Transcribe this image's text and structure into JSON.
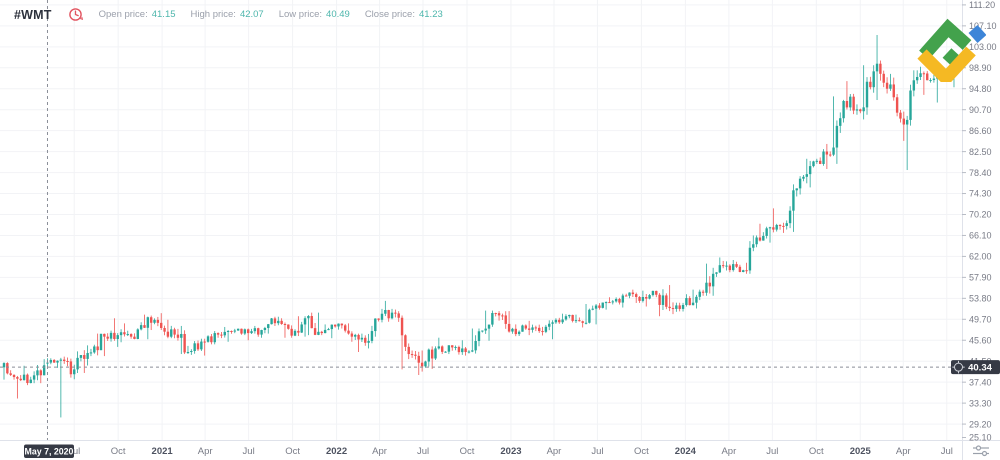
{
  "header": {
    "symbol": "#WMT",
    "fields": [
      {
        "label": "Open price:",
        "value": "41.15"
      },
      {
        "label": "High price:",
        "value": "42.07"
      },
      {
        "label": "Low price:",
        "value": "40.49"
      },
      {
        "label": "Close price:",
        "value": "41.23"
      }
    ]
  },
  "crosshair": {
    "date_label": "May 7, 2020",
    "date": "2020-05-04",
    "price_label": "40.34",
    "price": 40.34,
    "candle": {
      "o": 41.15,
      "h": 42.07,
      "l": 40.49,
      "c": 41.23
    }
  },
  "price_axis": {
    "ticks": [
      "111.20",
      "107.10",
      "103.00",
      "98.90",
      "94.80",
      "90.70",
      "86.60",
      "82.50",
      "78.40",
      "74.30",
      "70.20",
      "66.10",
      "62.00",
      "57.90",
      "53.80",
      "49.70",
      "45.60",
      "41.50",
      "37.40",
      "33.30",
      "29.20",
      "25.10"
    ]
  },
  "time_axis": {
    "ticks": [
      {
        "label": "Jul",
        "date": "2020-07-01",
        "major": false
      },
      {
        "label": "Oct",
        "date": "2020-10-01",
        "major": false
      },
      {
        "label": "2021",
        "date": "2021-01-01",
        "major": true
      },
      {
        "label": "Apr",
        "date": "2021-04-01",
        "major": false
      },
      {
        "label": "Jul",
        "date": "2021-07-01",
        "major": false
      },
      {
        "label": "Oct",
        "date": "2021-10-01",
        "major": false
      },
      {
        "label": "2022",
        "date": "2022-01-01",
        "major": true
      },
      {
        "label": "Apr",
        "date": "2022-04-01",
        "major": false
      },
      {
        "label": "Jul",
        "date": "2022-07-01",
        "major": false
      },
      {
        "label": "Oct",
        "date": "2022-10-01",
        "major": false
      },
      {
        "label": "2023",
        "date": "2023-01-01",
        "major": true
      },
      {
        "label": "Apr",
        "date": "2023-04-01",
        "major": false
      },
      {
        "label": "Jul",
        "date": "2023-07-01",
        "major": false
      },
      {
        "label": "Oct",
        "date": "2023-10-01",
        "major": false
      },
      {
        "label": "2024",
        "date": "2024-01-01",
        "major": true
      },
      {
        "label": "Apr",
        "date": "2024-04-01",
        "major": false
      },
      {
        "label": "Jul",
        "date": "2024-07-01",
        "major": false
      },
      {
        "label": "Oct",
        "date": "2024-10-01",
        "major": false
      },
      {
        "label": "2025",
        "date": "2025-01-01",
        "major": true
      },
      {
        "label": "Apr",
        "date": "2025-04-01",
        "major": false
      },
      {
        "label": "Jul",
        "date": "2025-07-01",
        "major": false
      }
    ]
  },
  "colors": {
    "up": "#26a69a",
    "down": "#ef5350",
    "grid": "#f2f3f6",
    "axis_line": "#dfe2ea",
    "tick_mark": "#b8bcc5",
    "axis_text": "#787b86",
    "axis_text_major": "#4d5260",
    "crosshair": "#8a8e98",
    "badge_bg": "#363a45",
    "badge_text": "#ffffff",
    "clock_icon": "#e25561",
    "logo_green": "#43a24c",
    "logo_yellow": "#f5b923",
    "logo_blue": "#3d85d8"
  },
  "chart_data": {
    "type": "candlestick",
    "symbol": "#WMT",
    "x_range": [
      "2020-02-03",
      "2025-07-14"
    ],
    "y_range": [
      25.1,
      111.2
    ],
    "price_step": 4.1,
    "grid": true,
    "monthly_ohlc": [
      [
        "2020-02",
        40.3,
        41.3,
        37.9,
        38.4
      ],
      [
        "2020-03",
        38.4,
        40.6,
        34.2,
        37.9
      ],
      [
        "2020-04",
        37.9,
        41.9,
        37.2,
        40.7
      ],
      [
        "2020-05",
        40.7,
        42.1,
        40.2,
        41.6
      ],
      [
        "2020-06",
        41.6,
        42.4,
        30.5,
        39.9
      ],
      [
        "2020-07",
        39.9,
        44.6,
        39.2,
        43.1
      ],
      [
        "2020-08",
        43.1,
        46.9,
        42.5,
        46.3
      ],
      [
        "2020-09",
        46.3,
        49.9,
        44.3,
        46.6
      ],
      [
        "2020-10",
        46.6,
        48.9,
        45.2,
        46.3
      ],
      [
        "2020-11",
        46.3,
        50.6,
        45.8,
        50.1
      ],
      [
        "2020-12",
        50.1,
        50.9,
        47.6,
        48.0
      ],
      [
        "2021-01",
        48.0,
        49.6,
        46.0,
        46.7
      ],
      [
        "2021-02",
        46.7,
        48.4,
        42.9,
        43.3
      ],
      [
        "2021-03",
        43.3,
        45.9,
        42.6,
        45.3
      ],
      [
        "2021-04",
        45.3,
        47.4,
        44.8,
        46.7
      ],
      [
        "2021-05",
        46.7,
        48.2,
        45.3,
        47.5
      ],
      [
        "2021-06",
        47.5,
        47.9,
        45.6,
        47.0
      ],
      [
        "2021-07",
        47.0,
        48.4,
        46.1,
        47.6
      ],
      [
        "2021-08",
        47.6,
        50.2,
        46.9,
        49.4
      ],
      [
        "2021-09",
        49.4,
        49.9,
        46.1,
        46.5
      ],
      [
        "2021-10",
        46.5,
        50.3,
        46.3,
        49.9
      ],
      [
        "2021-11",
        49.9,
        51.0,
        46.6,
        47.0
      ],
      [
        "2021-12",
        47.0,
        48.7,
        46.0,
        48.3
      ],
      [
        "2022-01",
        48.3,
        48.9,
        45.3,
        46.3
      ],
      [
        "2022-02",
        46.3,
        46.9,
        43.3,
        45.1
      ],
      [
        "2022-03",
        45.1,
        49.9,
        44.0,
        49.6
      ],
      [
        "2022-04",
        49.6,
        53.3,
        49.1,
        51.0
      ],
      [
        "2022-05",
        51.0,
        51.6,
        39.9,
        42.9
      ],
      [
        "2022-06",
        42.9,
        43.6,
        38.8,
        40.5
      ],
      [
        "2022-07",
        40.5,
        44.4,
        40.0,
        44.0
      ],
      [
        "2022-08",
        44.0,
        46.1,
        42.9,
        44.2
      ],
      [
        "2022-09",
        44.2,
        45.6,
        42.6,
        43.3
      ],
      [
        "2022-10",
        43.3,
        47.9,
        43.0,
        47.5
      ],
      [
        "2022-11",
        47.5,
        51.4,
        45.5,
        50.9
      ],
      [
        "2022-12",
        50.9,
        51.3,
        47.1,
        47.3
      ],
      [
        "2023-01",
        47.3,
        48.7,
        46.4,
        47.9
      ],
      [
        "2023-02",
        47.9,
        49.4,
        46.6,
        47.4
      ],
      [
        "2023-03",
        47.4,
        49.5,
        45.8,
        49.1
      ],
      [
        "2023-04",
        49.1,
        50.8,
        48.8,
        50.3
      ],
      [
        "2023-05",
        50.3,
        50.6,
        48.1,
        49.0
      ],
      [
        "2023-06",
        49.0,
        52.7,
        48.7,
        52.4
      ],
      [
        "2023-07",
        52.4,
        54.0,
        51.6,
        53.2
      ],
      [
        "2023-08",
        53.2,
        54.7,
        52.0,
        54.3
      ],
      [
        "2023-09",
        54.3,
        55.5,
        52.9,
        53.3
      ],
      [
        "2023-10",
        53.3,
        55.3,
        52.2,
        54.5
      ],
      [
        "2023-11",
        54.5,
        56.4,
        50.3,
        51.9
      ],
      [
        "2023-12",
        51.9,
        53.0,
        50.7,
        52.5
      ],
      [
        "2024-01",
        52.5,
        55.5,
        51.8,
        55.1
      ],
      [
        "2024-02",
        55.1,
        60.6,
        54.3,
        58.6
      ],
      [
        "2024-03",
        58.6,
        61.8,
        58.0,
        60.2
      ],
      [
        "2024-04",
        60.2,
        61.3,
        58.9,
        59.3
      ],
      [
        "2024-05",
        59.3,
        66.1,
        58.6,
        65.7
      ],
      [
        "2024-06",
        65.7,
        68.4,
        64.7,
        67.7
      ],
      [
        "2024-07",
        67.7,
        71.4,
        66.6,
        68.5
      ],
      [
        "2024-08",
        68.5,
        77.7,
        66.8,
        77.2
      ],
      [
        "2024-09",
        77.2,
        81.1,
        75.5,
        80.7
      ],
      [
        "2024-10",
        80.7,
        84.0,
        79.1,
        81.9
      ],
      [
        "2024-11",
        81.9,
        93.3,
        80.1,
        92.4
      ],
      [
        "2024-12",
        92.4,
        96.3,
        89.7,
        90.4
      ],
      [
        "2025-01",
        90.4,
        99.4,
        88.8,
        98.2
      ],
      [
        "2025-02",
        98.2,
        105.3,
        92.6,
        94.8
      ],
      [
        "2025-03",
        94.8,
        97.7,
        84.6,
        87.8
      ],
      [
        "2025-04",
        87.8,
        98.4,
        78.9,
        97.1
      ],
      [
        "2025-05",
        97.1,
        99.1,
        93.6,
        96.5
      ],
      [
        "2025-06",
        96.5,
        99.6,
        92.1,
        97.7
      ],
      [
        "2025-07",
        97.7,
        99.9,
        95.1,
        98.5
      ]
    ]
  }
}
